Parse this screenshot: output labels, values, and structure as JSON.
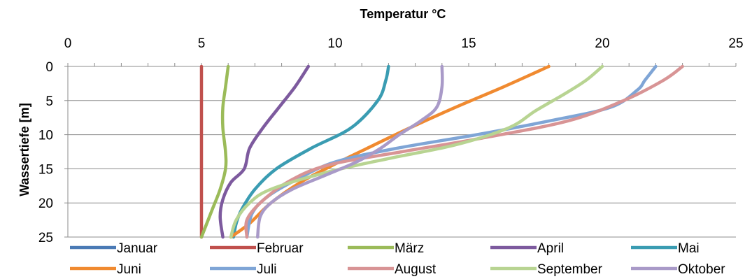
{
  "chart_data": {
    "type": "line",
    "title": "",
    "xlabel": "Temperatur °C",
    "ylabel": "Wassertiefe [m]",
    "xlim": [
      0,
      25
    ],
    "ylim": [
      0,
      25
    ],
    "x_ticks": [
      0,
      5,
      10,
      15,
      20,
      25
    ],
    "y_ticks": [
      0,
      5,
      10,
      15,
      20,
      25
    ],
    "x_axis_position": "top",
    "y_axis_inverted": true,
    "grid": "horizontal",
    "legend_position": "bottom",
    "series": [
      {
        "name": "Januar",
        "color": "#4a7ab5",
        "points": []
      },
      {
        "name": "Februar",
        "color": "#c0504d",
        "points": [
          [
            5,
            0
          ],
          [
            5,
            5
          ],
          [
            5,
            10
          ],
          [
            5,
            15
          ],
          [
            5,
            20
          ],
          [
            5,
            25
          ]
        ]
      },
      {
        "name": "März",
        "color": "#9bbb59",
        "points": [
          [
            6,
            0
          ],
          [
            5.9,
            3
          ],
          [
            5.8,
            6
          ],
          [
            5.8,
            9
          ],
          [
            5.9,
            12.5
          ],
          [
            5.9,
            15
          ],
          [
            5.7,
            18
          ],
          [
            5.4,
            21
          ],
          [
            5,
            25
          ]
        ]
      },
      {
        "name": "April",
        "color": "#7d5a9e",
        "points": [
          [
            9,
            0
          ],
          [
            8.5,
            3
          ],
          [
            7.9,
            6
          ],
          [
            7.3,
            9
          ],
          [
            6.8,
            12
          ],
          [
            6.6,
            15
          ],
          [
            6.1,
            17
          ],
          [
            5.8,
            19.5
          ],
          [
            5.7,
            22
          ],
          [
            5.8,
            25
          ]
        ]
      },
      {
        "name": "Mai",
        "color": "#3a9cb2",
        "points": [
          [
            12,
            0
          ],
          [
            11.9,
            2
          ],
          [
            11.6,
            5
          ],
          [
            10.6,
            9
          ],
          [
            9.1,
            12
          ],
          [
            7.8,
            15
          ],
          [
            7,
            18
          ],
          [
            6.5,
            21
          ],
          [
            6.3,
            23
          ],
          [
            6.2,
            25
          ]
        ]
      },
      {
        "name": "Juni",
        "color": "#f08a30",
        "points": [
          [
            18,
            0
          ],
          [
            16.3,
            3
          ],
          [
            14.5,
            6
          ],
          [
            12.8,
            9
          ],
          [
            11.2,
            12
          ],
          [
            9.9,
            14.5
          ],
          [
            8.7,
            17
          ],
          [
            7.6,
            20
          ],
          [
            6.8,
            23
          ],
          [
            6.1,
            25
          ]
        ]
      },
      {
        "name": "Juli",
        "color": "#7fa5d6",
        "points": [
          [
            22,
            0
          ],
          [
            21.6,
            2
          ],
          [
            21.3,
            3.5
          ],
          [
            20.3,
            6
          ],
          [
            18,
            8
          ],
          [
            15.3,
            10
          ],
          [
            12.3,
            12
          ],
          [
            10,
            14
          ],
          [
            8.6,
            16.5
          ],
          [
            7.5,
            19
          ],
          [
            6.9,
            21.5
          ],
          [
            6.7,
            25
          ]
        ]
      },
      {
        "name": "August",
        "color": "#d89495",
        "points": [
          [
            23,
            0
          ],
          [
            22.3,
            2
          ],
          [
            20.8,
            5
          ],
          [
            18.7,
            8
          ],
          [
            15.5,
            10.5
          ],
          [
            12.5,
            12.5
          ],
          [
            9.7,
            14.5
          ],
          [
            8.2,
            17
          ],
          [
            7.2,
            20
          ],
          [
            6.7,
            22.5
          ],
          [
            6.7,
            25
          ]
        ]
      },
      {
        "name": "September",
        "color": "#b8d492",
        "points": [
          [
            20,
            0
          ],
          [
            19.4,
            2
          ],
          [
            18.6,
            4
          ],
          [
            17.5,
            6.5
          ],
          [
            16.5,
            9
          ],
          [
            14.5,
            11.5
          ],
          [
            12,
            13.5
          ],
          [
            9.7,
            15.5
          ],
          [
            7.6,
            18
          ],
          [
            6.8,
            20
          ],
          [
            6.3,
            22.5
          ],
          [
            6.1,
            25
          ]
        ]
      },
      {
        "name": "Oktober",
        "color": "#a99ac8",
        "points": [
          [
            14,
            0
          ],
          [
            14,
            3
          ],
          [
            13.8,
            6
          ],
          [
            13.2,
            8
          ],
          [
            12.4,
            10
          ],
          [
            11.7,
            12
          ],
          [
            10.8,
            14
          ],
          [
            9.6,
            16
          ],
          [
            8.4,
            18
          ],
          [
            7.6,
            20
          ],
          [
            7.2,
            22
          ],
          [
            7.1,
            25
          ]
        ]
      }
    ]
  }
}
